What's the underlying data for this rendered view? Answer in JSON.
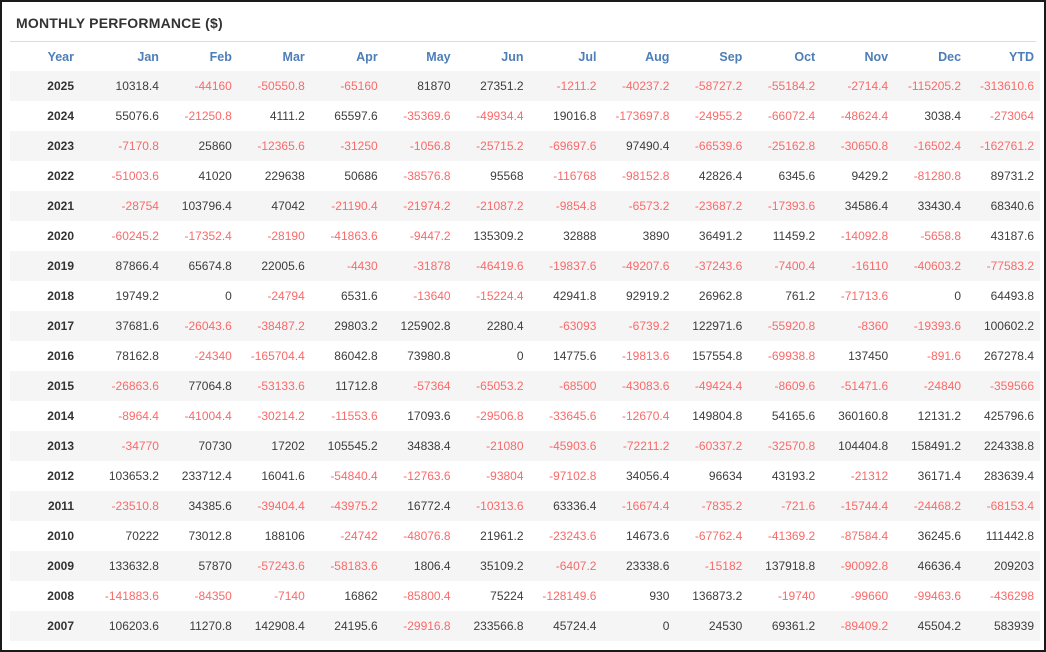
{
  "colors": {
    "accent_header_text": "#4d7eb8",
    "negative_value": "#f96a6a",
    "positive_value": "#3d3d3d",
    "year_text": "#333333",
    "row_stripe": "#f5f5f5",
    "outer_border": "#1a1a1a",
    "divider": "#dcdcdc"
  },
  "chart_data": {
    "type": "table",
    "title": "MONTHLY PERFORMANCE ($)",
    "columns": [
      "Year",
      "Jan",
      "Feb",
      "Mar",
      "Apr",
      "May",
      "Jun",
      "Jul",
      "Aug",
      "Sep",
      "Oct",
      "Nov",
      "Dec",
      "YTD"
    ],
    "rows": [
      {
        "year": "2025",
        "values": [
          "10318.4",
          "-44160",
          "-50550.8",
          "-65160",
          "81870",
          "27351.2",
          "-1211.2",
          "-40237.2",
          "-58727.2",
          "-55184.2",
          "-2714.4",
          "-115205.2",
          "-313610.6"
        ]
      },
      {
        "year": "2024",
        "values": [
          "55076.6",
          "-21250.8",
          "4111.2",
          "65597.6",
          "-35369.6",
          "-49934.4",
          "19016.8",
          "-173697.8",
          "-24955.2",
          "-66072.4",
          "-48624.4",
          "3038.4",
          "-273064"
        ]
      },
      {
        "year": "2023",
        "values": [
          "-7170.8",
          "25860",
          "-12365.6",
          "-31250",
          "-1056.8",
          "-25715.2",
          "-69697.6",
          "97490.4",
          "-66539.6",
          "-25162.8",
          "-30650.8",
          "-16502.4",
          "-162761.2"
        ]
      },
      {
        "year": "2022",
        "values": [
          "-51003.6",
          "41020",
          "229638",
          "50686",
          "-38576.8",
          "95568",
          "-116768",
          "-98152.8",
          "42826.4",
          "6345.6",
          "9429.2",
          "-81280.8",
          "89731.2"
        ]
      },
      {
        "year": "2021",
        "values": [
          "-28754",
          "103796.4",
          "47042",
          "-21190.4",
          "-21974.2",
          "-21087.2",
          "-9854.8",
          "-6573.2",
          "-23687.2",
          "-17393.6",
          "34586.4",
          "33430.4",
          "68340.6"
        ]
      },
      {
        "year": "2020",
        "values": [
          "-60245.2",
          "-17352.4",
          "-28190",
          "-41863.6",
          "-9447.2",
          "135309.2",
          "32888",
          "3890",
          "36491.2",
          "11459.2",
          "-14092.8",
          "-5658.8",
          "43187.6"
        ]
      },
      {
        "year": "2019",
        "values": [
          "87866.4",
          "65674.8",
          "22005.6",
          "-4430",
          "-31878",
          "-46419.6",
          "-19837.6",
          "-49207.6",
          "-37243.6",
          "-7400.4",
          "-16110",
          "-40603.2",
          "-77583.2"
        ]
      },
      {
        "year": "2018",
        "values": [
          "19749.2",
          "0",
          "-24794",
          "6531.6",
          "-13640",
          "-15224.4",
          "42941.8",
          "92919.2",
          "26962.8",
          "761.2",
          "-71713.6",
          "0",
          "64493.8"
        ]
      },
      {
        "year": "2017",
        "values": [
          "37681.6",
          "-26043.6",
          "-38487.2",
          "29803.2",
          "125902.8",
          "2280.4",
          "-63093",
          "-6739.2",
          "122971.6",
          "-55920.8",
          "-8360",
          "-19393.6",
          "100602.2"
        ]
      },
      {
        "year": "2016",
        "values": [
          "78162.8",
          "-24340",
          "-165704.4",
          "86042.8",
          "73980.8",
          "0",
          "14775.6",
          "-19813.6",
          "157554.8",
          "-69938.8",
          "137450",
          "-891.6",
          "267278.4"
        ]
      },
      {
        "year": "2015",
        "values": [
          "-26863.6",
          "77064.8",
          "-53133.6",
          "11712.8",
          "-57364",
          "-65053.2",
          "-68500",
          "-43083.6",
          "-49424.4",
          "-8609.6",
          "-51471.6",
          "-24840",
          "-359566"
        ]
      },
      {
        "year": "2014",
        "values": [
          "-8964.4",
          "-41004.4",
          "-30214.2",
          "-11553.6",
          "17093.6",
          "-29506.8",
          "-33645.6",
          "-12670.4",
          "149804.8",
          "54165.6",
          "360160.8",
          "12131.2",
          "425796.6"
        ]
      },
      {
        "year": "2013",
        "values": [
          "-34770",
          "70730",
          "17202",
          "105545.2",
          "34838.4",
          "-21080",
          "-45903.6",
          "-72211.2",
          "-60337.2",
          "-32570.8",
          "104404.8",
          "158491.2",
          "224338.8"
        ]
      },
      {
        "year": "2012",
        "values": [
          "103653.2",
          "233712.4",
          "16041.6",
          "-54840.4",
          "-12763.6",
          "-93804",
          "-97102.8",
          "34056.4",
          "96634",
          "43193.2",
          "-21312",
          "36171.4",
          "283639.4"
        ]
      },
      {
        "year": "2011",
        "values": [
          "-23510.8",
          "34385.6",
          "-39404.4",
          "-43975.2",
          "16772.4",
          "-10313.6",
          "63336.4",
          "-16674.4",
          "-7835.2",
          "-721.6",
          "-15744.4",
          "-24468.2",
          "-68153.4"
        ]
      },
      {
        "year": "2010",
        "values": [
          "70222",
          "73012.8",
          "188106",
          "-24742",
          "-48076.8",
          "21961.2",
          "-23243.6",
          "14673.6",
          "-67762.4",
          "-41369.2",
          "-87584.4",
          "36245.6",
          "111442.8"
        ]
      },
      {
        "year": "2009",
        "values": [
          "133632.8",
          "57870",
          "-57243.6",
          "-58183.6",
          "1806.4",
          "35109.2",
          "-6407.2",
          "23338.6",
          "-15182",
          "137918.8",
          "-90092.8",
          "46636.4",
          "209203"
        ]
      },
      {
        "year": "2008",
        "values": [
          "-141883.6",
          "-84350",
          "-7140",
          "16862",
          "-85800.4",
          "75224",
          "-128149.6",
          "930",
          "136873.2",
          "-19740",
          "-99660",
          "-99463.6",
          "-436298"
        ]
      },
      {
        "year": "2007",
        "values": [
          "106203.6",
          "11270.8",
          "142908.4",
          "24195.6",
          "-29916.8",
          "233566.8",
          "45724.4",
          "0",
          "24530",
          "69361.2",
          "-89409.2",
          "45504.2",
          "583939"
        ]
      }
    ]
  }
}
